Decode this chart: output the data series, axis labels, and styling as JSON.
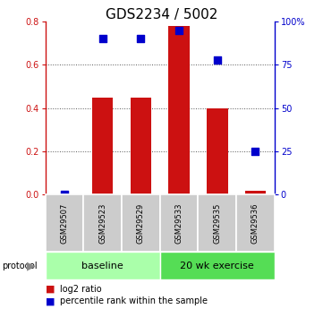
{
  "title": "GDS2234 / 5002",
  "samples": [
    "GSM29507",
    "GSM29523",
    "GSM29529",
    "GSM29533",
    "GSM29535",
    "GSM29536"
  ],
  "log2_ratio": [
    0.0,
    0.45,
    0.45,
    0.78,
    0.4,
    0.02
  ],
  "percentile_rank": [
    0.0,
    90.0,
    90.0,
    95.0,
    78.0,
    25.0
  ],
  "bar_color": "#cc1111",
  "dot_color": "#0000cc",
  "left_ylim": [
    0,
    0.8
  ],
  "right_ylim": [
    0,
    100
  ],
  "left_yticks": [
    0,
    0.2,
    0.4,
    0.6,
    0.8
  ],
  "right_yticks": [
    0,
    25,
    50,
    75,
    100
  ],
  "right_yticklabels": [
    "0",
    "25",
    "50",
    "75",
    "100%"
  ],
  "groups": [
    {
      "label": "baseline",
      "start": 0,
      "end": 3,
      "color": "#aaffaa"
    },
    {
      "label": "20 wk exercise",
      "start": 3,
      "end": 6,
      "color": "#55dd55"
    }
  ],
  "protocol_label": "protocol",
  "legend_items": [
    {
      "label": "log2 ratio",
      "color": "#cc1111"
    },
    {
      "label": "percentile rank within the sample",
      "color": "#0000cc"
    }
  ],
  "bar_width": 0.55,
  "dot_size": 35,
  "grid_color": "#555555",
  "left_axis_color": "#cc1111",
  "right_axis_color": "#0000cc",
  "title_fontsize": 11,
  "tick_fontsize": 7,
  "sample_fontsize": 6,
  "proto_fontsize": 8,
  "legend_fontsize": 7
}
